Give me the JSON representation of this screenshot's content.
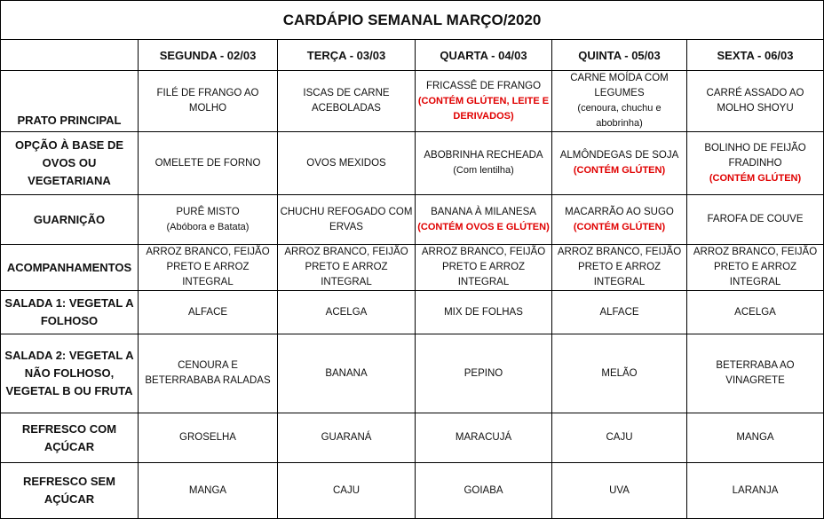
{
  "title": "CARDÁPIO SEMANAL MARÇO/2020",
  "days": [
    "SEGUNDA - 02/03",
    "TERÇA - 03/03",
    "QUARTA - 04/03",
    "QUINTA - 05/03",
    "SEXTA - 06/03"
  ],
  "warning_color": "#e00000",
  "rows": [
    {
      "label": "PRATO PRINCIPAL",
      "label_align": "bottom",
      "cells": [
        {
          "main": "FILÉ DE FRANGO AO MOLHO"
        },
        {
          "main": "ISCAS DE CARNE ACEBOLADAS"
        },
        {
          "main": "FRICASSÊ DE FRANGO",
          "warning": "(CONTÉM GLÚTEN, LEITE E DERIVADOS)"
        },
        {
          "main": "CARNE MOÍDA COM LEGUMES",
          "note": "(cenoura, chuchu e abobrinha)"
        },
        {
          "main": "CARRÉ ASSADO AO MOLHO SHOYU"
        }
      ]
    },
    {
      "label": "OPÇÃO À BASE DE OVOS OU VEGETARIANA",
      "cells": [
        {
          "main": "OMELETE DE FORNO"
        },
        {
          "main": "OVOS MEXIDOS"
        },
        {
          "main": "ABOBRINHA RECHEADA",
          "note": "(Com lentilha)"
        },
        {
          "main": "ALMÔNDEGAS DE SOJA",
          "warning": "(CONTÉM GLÚTEN)"
        },
        {
          "main": "BOLINHO DE FEIJÃO FRADINHO",
          "warning": "(CONTÉM GLÚTEN)"
        }
      ]
    },
    {
      "label": "GUARNIÇÃO",
      "cells": [
        {
          "main": "PURÊ MISTO",
          "note": "(Abóbora e Batata)"
        },
        {
          "main": "CHUCHU REFOGADO COM ERVAS"
        },
        {
          "main": "BANANA À MILANESA",
          "warning": "(CONTÉM OVOS E GLÚTEN)"
        },
        {
          "main": "MACARRÃO AO SUGO",
          "warning": "(CONTÉM GLÚTEN)"
        },
        {
          "main": "FAROFA DE COUVE"
        }
      ]
    },
    {
      "label": "ACOMPANHAMENTOS",
      "cells": [
        {
          "main": "ARROZ BRANCO, FEIJÃO PRETO E ARROZ INTEGRAL"
        },
        {
          "main": "ARROZ BRANCO, FEIJÃO PRETO E ARROZ INTEGRAL"
        },
        {
          "main": "ARROZ BRANCO, FEIJÃO PRETO E ARROZ INTEGRAL"
        },
        {
          "main": "ARROZ BRANCO, FEIJÃO PRETO E ARROZ INTEGRAL"
        },
        {
          "main": "ARROZ BRANCO, FEIJÃO PRETO E ARROZ INTEGRAL"
        }
      ]
    },
    {
      "label": "SALADA 1: VEGETAL A FOLHOSO",
      "cells": [
        {
          "main": "ALFACE"
        },
        {
          "main": "ACELGA"
        },
        {
          "main": "MIX DE FOLHAS"
        },
        {
          "main": "ALFACE"
        },
        {
          "main": "ACELGA"
        }
      ]
    },
    {
      "label": "SALADA 2: VEGETAL A NÃO FOLHOSO, VEGETAL B OU FRUTA",
      "cells": [
        {
          "main": "CENOURA E BETERRABABA RALADAS"
        },
        {
          "main": "BANANA"
        },
        {
          "main": "PEPINO"
        },
        {
          "main": "MELÃO"
        },
        {
          "main": "BETERRABA AO VINAGRETE"
        }
      ]
    },
    {
      "label": "REFRESCO COM AÇÚCAR",
      "cells": [
        {
          "main": "GROSELHA"
        },
        {
          "main": "GUARANÁ"
        },
        {
          "main": "MARACUJÁ"
        },
        {
          "main": "CAJU"
        },
        {
          "main": "MANGA"
        }
      ]
    },
    {
      "label": "REFRESCO SEM AÇÚCAR",
      "cells": [
        {
          "main": "MANGA"
        },
        {
          "main": "CAJU"
        },
        {
          "main": "GOIABA"
        },
        {
          "main": "UVA"
        },
        {
          "main": "LARANJA"
        }
      ]
    }
  ]
}
